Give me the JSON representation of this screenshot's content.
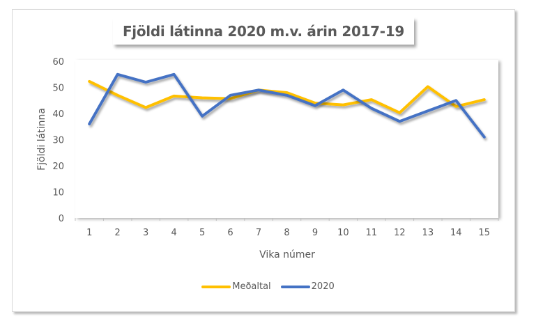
{
  "chart_data": {
    "type": "line",
    "title": "Fjöldi látinna 2020 m.v. árin 2017-19",
    "xlabel": "Vika númer",
    "ylabel": "Fjöldi látinna",
    "categories": [
      "1",
      "2",
      "3",
      "4",
      "5",
      "6",
      "7",
      "8",
      "9",
      "10",
      "11",
      "12",
      "13",
      "14",
      "15"
    ],
    "ylim": [
      0,
      60
    ],
    "yticks": [
      0,
      10,
      20,
      30,
      40,
      50,
      60
    ],
    "grid": true,
    "legend_position": "bottom",
    "series": [
      {
        "name": "Meðaltal",
        "color": "#FFC000",
        "values": [
          52.3,
          47.0,
          42.3,
          46.7,
          46.0,
          45.7,
          49.0,
          48.0,
          44.0,
          43.3,
          45.3,
          40.3,
          50.3,
          42.7,
          45.3
        ]
      },
      {
        "name": "2020",
        "color": "#4472C4",
        "values": [
          36,
          55,
          52,
          55,
          39,
          47,
          49,
          47,
          43,
          49,
          42,
          37,
          41,
          45,
          31
        ]
      }
    ]
  },
  "legend": {
    "items": [
      {
        "label": "Meðaltal",
        "color": "#FFC000"
      },
      {
        "label": "2020",
        "color": "#4472C4"
      }
    ]
  }
}
